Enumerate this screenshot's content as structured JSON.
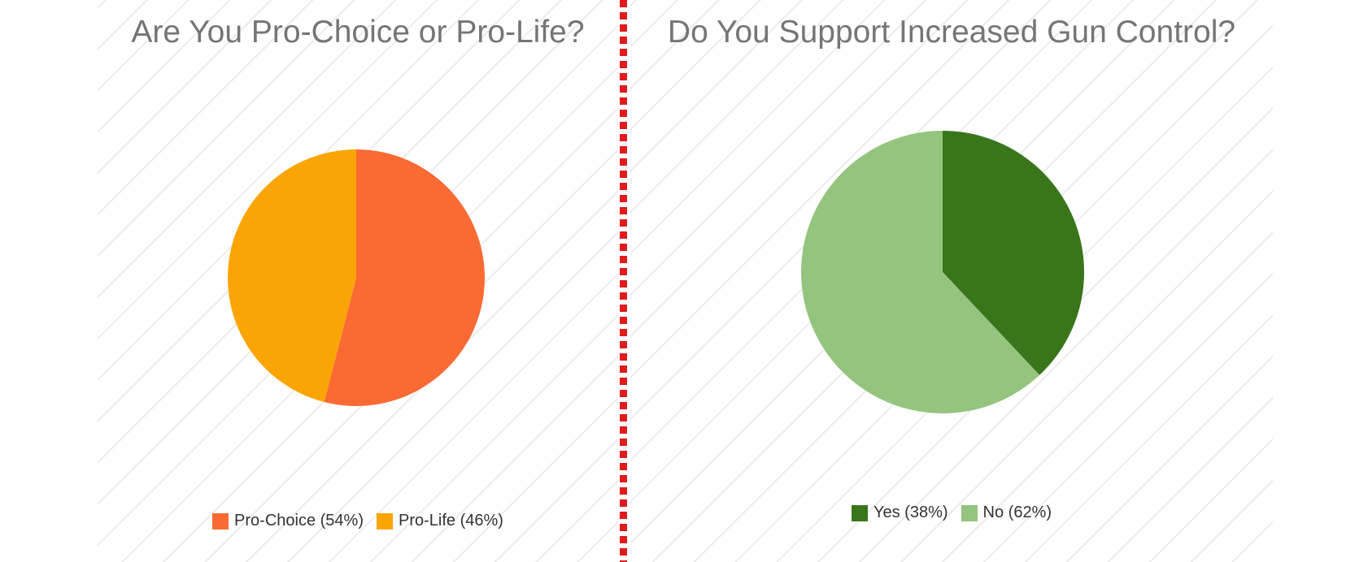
{
  "chart_data": [
    {
      "type": "pie",
      "title": "Are You Pro-Choice or Pro-Life?",
      "slices": [
        {
          "label": "Pro-Choice",
          "value": 54,
          "color": "#fb6a33",
          "legend": "Pro-Choice (54%)"
        },
        {
          "label": "Pro-Life",
          "value": 46,
          "color": "#fba505",
          "legend": "Pro-Life (46%)"
        }
      ],
      "legend_position": "bottom"
    },
    {
      "type": "pie",
      "title": "Do You Support Increased Gun Control?",
      "slices": [
        {
          "label": "Yes",
          "value": 38,
          "color": "#39761b",
          "legend": "Yes (38%)"
        },
        {
          "label": "No",
          "value": 62,
          "color": "#94c47d",
          "legend": "No (62%)"
        }
      ],
      "legend_position": "bottom"
    }
  ]
}
